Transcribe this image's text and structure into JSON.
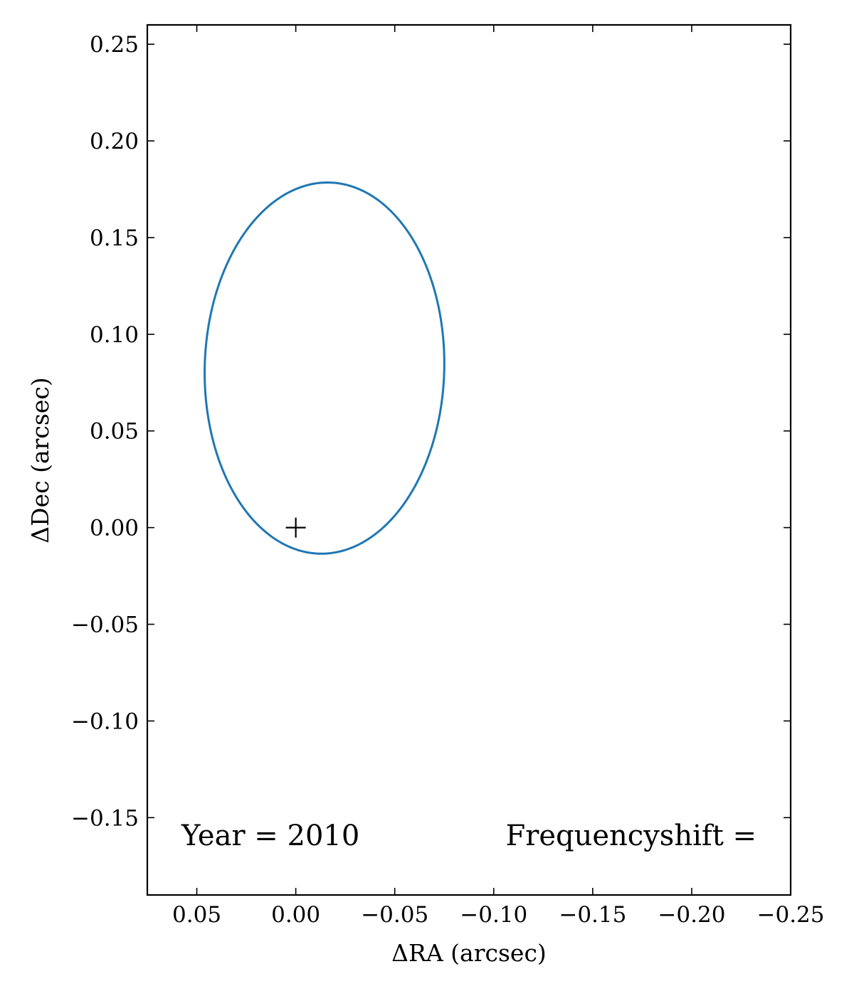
{
  "chart_data": {
    "type": "line",
    "title": "",
    "xlabel": "ΔRA (arcsec)",
    "ylabel": "ΔDec (arcsec)",
    "xlim": [
      0.075,
      -0.25
    ],
    "ylim": [
      -0.19,
      0.26
    ],
    "x_reversed": true,
    "grid": false,
    "x_ticks": [
      0.05,
      0.0,
      -0.05,
      -0.1,
      -0.15,
      -0.2,
      -0.25
    ],
    "x_tick_labels": [
      "0.05",
      "0.00",
      "−0.05",
      "−0.10",
      "−0.15",
      "−0.20",
      "−0.25"
    ],
    "y_ticks": [
      0.25,
      0.2,
      0.15,
      0.1,
      0.05,
      0.0,
      -0.05,
      -0.1,
      -0.15
    ],
    "y_tick_labels": [
      "0.25",
      "0.20",
      "0.15",
      "0.10",
      "0.05",
      "0.00",
      "−0.05",
      "−0.10",
      "−0.15"
    ],
    "series": [
      {
        "kind": "orbit-ellipse",
        "color": "#1f77b4",
        "center": [
          -0.0145,
          0.0825
        ],
        "semi_axis_x": 0.0605,
        "semi_axis_y": 0.096,
        "tilt_deg": 1.5
      }
    ],
    "markers": [
      {
        "symbol": "+",
        "x": 0.0,
        "y": 0.0,
        "color": "#000000"
      }
    ],
    "annotations": {
      "year": "Year = 2010",
      "frequency": "Frequencyshift ="
    }
  }
}
